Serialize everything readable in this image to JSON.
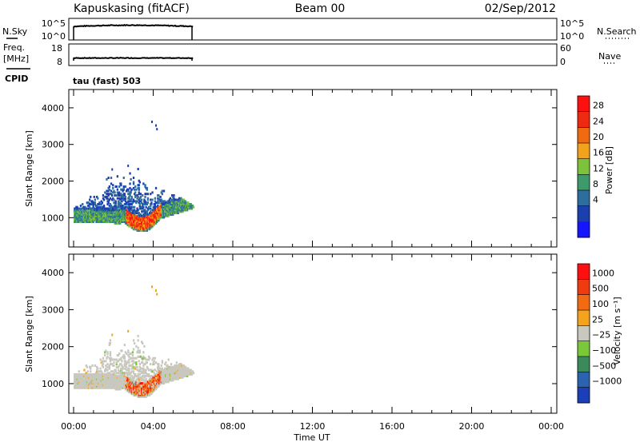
{
  "header": {
    "station": "Kapuskasing (fitACF)",
    "beam": "Beam 00",
    "date": "02/Sep/2012"
  },
  "noise_panel": {
    "left_label": "N.Sky",
    "right_label": "N.Search",
    "left_ticks": [
      "10^5",
      "10^0"
    ],
    "right_ticks": [
      "10^5",
      "10^0"
    ]
  },
  "freq_panel": {
    "left_label_line1": "Freq.",
    "left_label_line2": "[MHz]",
    "right_label": "Nave",
    "left_ticks": [
      "18",
      "8"
    ],
    "right_ticks": [
      "60",
      "0"
    ],
    "cpid_label": "CPID",
    "cpid_text": "tau (fast) 503"
  },
  "colors": {
    "power_scale": [
      "#1515ff",
      "#1c3fb0",
      "#2e6e9e",
      "#3d9a6a",
      "#7cc23a",
      "#f2a31b",
      "#f06a10",
      "#f02a10",
      "#ff1010"
    ],
    "velocity_scale": [
      "#1a3fb8",
      "#2c63b0",
      "#3a8a5a",
      "#78c83a",
      "#c8c8be",
      "#f5a21d",
      "#f26a12",
      "#f03a10",
      "#ff1010"
    ],
    "grey_velocity": "#c8c8be"
  },
  "chart_data": [
    {
      "type": "heatmap",
      "ylabel": "Slant Range [km]",
      "ylim": [
        200,
        4500
      ],
      "y_ticks": [
        "1000",
        "2000",
        "3000",
        "4000"
      ],
      "colorbar_label": "Power [dB]",
      "colorbar_ticks": [
        "28",
        "24",
        "20",
        "16",
        "12",
        "8",
        "4"
      ],
      "x_ticks": [
        "00:00",
        "04:00",
        "08:00",
        "12:00",
        "16:00",
        "20:00",
        "00:00"
      ],
      "data_extent_hours": [
        0,
        6
      ]
    },
    {
      "type": "heatmap",
      "ylabel": "Slant Range [km]",
      "ylim": [
        200,
        4500
      ],
      "y_ticks": [
        "1000",
        "2000",
        "3000",
        "4000"
      ],
      "colorbar_label": "Velocity [m s⁻¹]",
      "colorbar_ticks": [
        "1000",
        "500",
        "100",
        "25",
        "−25",
        "−100",
        "−500",
        "−1000"
      ],
      "x_ticks": [
        "00:00",
        "04:00",
        "08:00",
        "12:00",
        "16:00",
        "20:00",
        "00:00"
      ],
      "xlabel": "Time UT",
      "data_extent_hours": [
        0,
        6
      ]
    }
  ]
}
